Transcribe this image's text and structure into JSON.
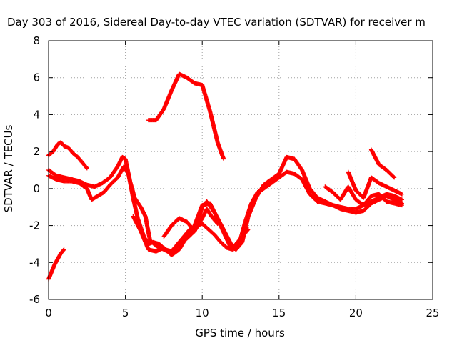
{
  "chart_data": {
    "type": "scatter",
    "title": "Day 303 of 2016, Sidereal Day-to-day VTEC variation (SDTVAR) for receiver m",
    "xlabel": "GPS time / hours",
    "ylabel": "SDTVAR / TECUs",
    "xlim": [
      0,
      25
    ],
    "ylim": [
      -6,
      8
    ],
    "xticks": [
      0,
      5,
      10,
      15,
      20,
      25
    ],
    "yticks": [
      -6,
      -4,
      -2,
      0,
      2,
      4,
      6,
      8
    ],
    "xtick_labels": [
      "0",
      "5",
      "10",
      "15",
      "20",
      "25"
    ],
    "ytick_labels": [
      "-6",
      "-4",
      "-2",
      "0",
      "2",
      "4",
      "6",
      "8"
    ],
    "grid": true,
    "legend": "none",
    "marker": "+",
    "color": "#ff0000",
    "series": [
      {
        "x": [
          6.5,
          7.0,
          7.5,
          8.0,
          8.5,
          9.0,
          9.5,
          10.0,
          10.5,
          11.0,
          11.3,
          11.4
        ],
        "y": [
          3.7,
          3.7,
          4.3,
          5.3,
          6.2,
          6.0,
          5.7,
          5.6,
          4.2,
          2.5,
          1.8,
          1.6
        ]
      },
      {
        "x": [
          0.0,
          0.3,
          0.6,
          0.8,
          1.0,
          1.3,
          1.6,
          1.9,
          2.2,
          2.5
        ],
        "y": [
          1.8,
          2.0,
          2.4,
          2.5,
          2.3,
          2.2,
          1.9,
          1.7,
          1.4,
          1.1
        ]
      },
      {
        "x": [
          0.0,
          0.2,
          0.4,
          0.6,
          0.8,
          1.0
        ],
        "y": [
          -4.9,
          -4.5,
          -4.1,
          -3.8,
          -3.5,
          -3.3
        ]
      },
      {
        "x": [
          0.0,
          0.5,
          1.0,
          1.5,
          2.0,
          2.5,
          3.0,
          3.5,
          4.0,
          4.5,
          4.8,
          5.0,
          5.3,
          5.6,
          6.0,
          6.3,
          6.6,
          7.0,
          7.5,
          8.0,
          8.5,
          9.0,
          9.5,
          10.0,
          10.3,
          10.8,
          11.3,
          11.8,
          12.2,
          12.6,
          13.0,
          13.5,
          14.0,
          14.5,
          15.0,
          15.5,
          16.0,
          16.5,
          17.0,
          17.5,
          18.0,
          18.5,
          19.0,
          19.5,
          20.0,
          20.5,
          21.0,
          21.5,
          22.0,
          22.5,
          23.0
        ],
        "y": [
          1.0,
          0.7,
          0.6,
          0.5,
          0.4,
          0.2,
          0.1,
          0.3,
          0.6,
          1.2,
          1.7,
          1.6,
          0.4,
          -0.5,
          -1.0,
          -1.5,
          -2.8,
          -3.1,
          -3.3,
          -3.5,
          -3.0,
          -2.7,
          -2.3,
          -1.0,
          -0.7,
          -1.3,
          -2.2,
          -3.1,
          -3.3,
          -2.9,
          -1.5,
          -0.5,
          0.2,
          0.5,
          0.8,
          1.7,
          1.6,
          1.0,
          0.0,
          -0.5,
          -0.7,
          -0.9,
          -1.1,
          -1.2,
          -1.3,
          -1.2,
          -0.8,
          -0.6,
          -0.4,
          -0.6,
          -0.8
        ]
      },
      {
        "x": [
          0.0,
          0.5,
          1.0,
          1.5,
          2.0,
          2.5,
          2.8,
          3.2,
          3.6,
          4.0,
          4.5,
          4.9,
          5.2,
          5.5,
          5.8,
          6.2,
          6.5,
          6.8,
          7.2,
          7.6,
          8.0,
          8.4,
          8.8,
          9.2,
          9.6,
          10.0,
          10.4,
          10.8,
          11.2,
          11.6,
          12.0,
          12.4,
          12.8,
          13.2,
          13.6,
          14.0,
          14.5,
          15.0,
          15.5,
          16.0,
          16.5,
          17.0,
          17.5,
          18.0,
          18.5,
          19.0,
          19.5,
          20.0,
          20.5,
          21.0,
          21.5,
          22.0,
          22.5,
          23.0
        ],
        "y": [
          0.7,
          0.5,
          0.4,
          0.4,
          0.3,
          0.0,
          -0.6,
          -0.4,
          -0.2,
          0.2,
          0.6,
          1.2,
          0.8,
          -0.5,
          -1.6,
          -2.6,
          -3.0,
          -2.9,
          -3.0,
          -3.3,
          -3.4,
          -3.0,
          -2.6,
          -2.2,
          -2.0,
          -1.9,
          -2.2,
          -2.5,
          -2.9,
          -3.2,
          -3.3,
          -3.0,
          -1.8,
          -0.8,
          -0.2,
          0.0,
          0.3,
          0.6,
          0.9,
          0.8,
          0.5,
          -0.3,
          -0.7,
          -0.8,
          -0.9,
          -1.0,
          -1.1,
          -1.1,
          -0.9,
          -0.7,
          -0.5,
          -0.3,
          -0.4,
          -0.6
        ]
      },
      {
        "x": [
          5.5,
          6.0,
          6.5,
          7.0,
          7.5,
          8.0,
          8.5,
          9.0,
          9.5,
          10.0,
          10.5,
          11.0,
          11.5,
          12.0,
          12.5,
          13.0
        ],
        "y": [
          -1.5,
          -2.3,
          -3.3,
          -3.4,
          -3.2,
          -3.6,
          -3.3,
          -2.6,
          -2.0,
          -0.9,
          -0.8,
          -1.6,
          -2.4,
          -3.2,
          -2.7,
          -2.2
        ]
      },
      {
        "x": [
          7.5,
          8.0,
          8.5,
          9.0,
          9.5,
          10.0,
          10.3,
          10.6,
          11.0
        ],
        "y": [
          -2.6,
          -2.0,
          -1.6,
          -1.8,
          -2.3,
          -1.6,
          -1.1,
          -1.5,
          -1.9
        ]
      },
      {
        "x": [
          18.0,
          18.5,
          19.0,
          19.5,
          20.0,
          20.5,
          21.0,
          21.5,
          22.0,
          22.5,
          23.0
        ],
        "y": [
          0.1,
          -0.2,
          -0.6,
          0.1,
          -0.6,
          -0.9,
          -0.4,
          -0.3,
          -0.7,
          -0.8,
          -0.9
        ]
      },
      {
        "x": [
          19.5,
          20.0,
          20.5,
          21.0,
          21.5,
          22.0,
          22.5,
          23.0
        ],
        "y": [
          0.9,
          -0.1,
          -0.5,
          0.6,
          0.3,
          0.1,
          -0.1,
          -0.3
        ]
      },
      {
        "x": [
          21.0,
          21.5,
          22.0,
          22.5
        ],
        "y": [
          2.1,
          1.3,
          1.0,
          0.6
        ]
      }
    ]
  }
}
